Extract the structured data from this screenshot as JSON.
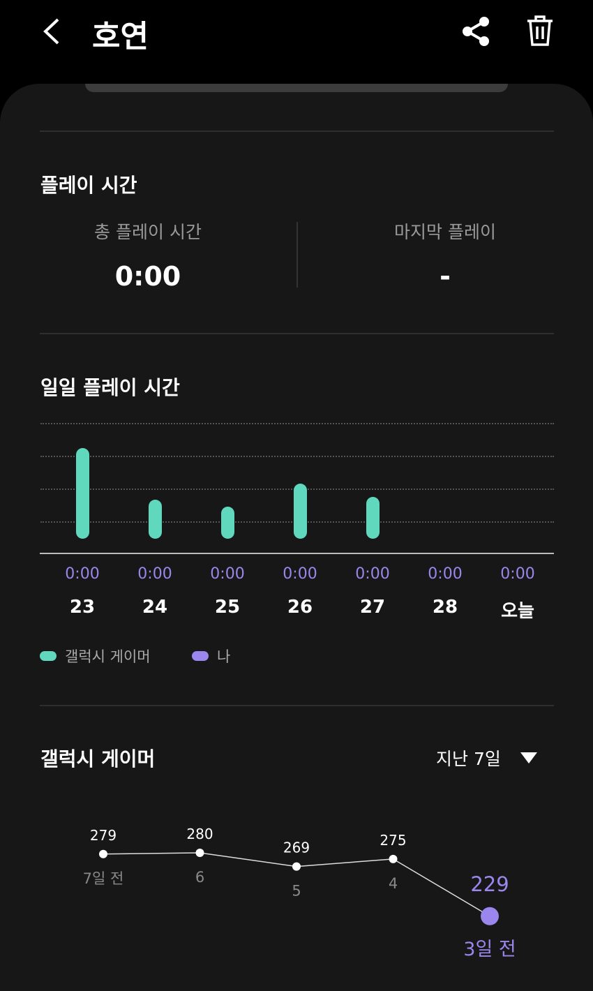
{
  "header": {
    "title": "호연",
    "back_icon": "chevron-left-icon",
    "share_icon": "share-icon",
    "delete_icon": "trash-icon"
  },
  "play_time": {
    "heading": "플레이 시간",
    "total_label": "총 플레이 시간",
    "total_value": "0:00",
    "last_label": "마지막 플레이",
    "last_value": "-"
  },
  "daily": {
    "heading": "일일 플레이 시간",
    "chart_data": {
      "type": "bar",
      "categories": [
        "23",
        "24",
        "25",
        "26",
        "27",
        "28",
        "오늘"
      ],
      "series": [
        {
          "name": "갤럭시 게이머",
          "values": [
            2.8,
            1.2,
            1.0,
            1.7,
            1.3,
            0,
            0
          ]
        },
        {
          "name": "나",
          "values": [
            0,
            0,
            0,
            0,
            0,
            0,
            0
          ]
        }
      ],
      "value_labels": [
        "0:00",
        "0:00",
        "0:00",
        "0:00",
        "0:00",
        "0:00",
        "0:00"
      ],
      "grid": true,
      "legend": "bottom-left",
      "colors": {
        "갤럭시 게이머": "#5fd8bd",
        "나": "#9a86ec"
      }
    },
    "legend": [
      {
        "label": "갤럭시 게이머",
        "color": "#5fd8bd"
      },
      {
        "label": "나",
        "color": "#9a86ec"
      }
    ]
  },
  "gamer": {
    "heading": "갤럭시 게이머",
    "range_label": "지난 7일",
    "chart_data": {
      "type": "line",
      "x": [
        "7일 전",
        "6",
        "5",
        "4",
        "3일 전"
      ],
      "values": [
        279,
        280,
        269,
        275,
        229
      ],
      "highlight_index": 4,
      "highlight_color": "#9a86ec"
    }
  }
}
